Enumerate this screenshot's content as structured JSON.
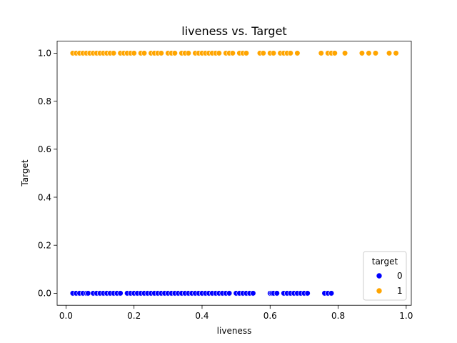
{
  "chart_data": {
    "type": "scatter",
    "title": "liveness vs. Target",
    "xlabel": "liveness",
    "ylabel": "Target",
    "xlim": [
      -0.026,
      1.015
    ],
    "ylim": [
      -0.05,
      1.05
    ],
    "xticks": [
      0.0,
      0.2,
      0.4,
      0.6,
      0.8,
      1.0
    ],
    "xtick_labels": [
      "0.0",
      "0.2",
      "0.4",
      "0.6",
      "0.8",
      "1.0"
    ],
    "yticks": [
      0.0,
      0.2,
      0.4,
      0.6,
      0.8,
      1.0
    ],
    "ytick_labels": [
      "0.0",
      "0.2",
      "0.4",
      "0.6",
      "0.8",
      "1.0"
    ],
    "grid": false,
    "legend": {
      "title": "target",
      "placement": "lower-right",
      "entries": [
        {
          "label": "0",
          "color": "#0000ff"
        },
        {
          "label": "1",
          "color": "#ffa500"
        }
      ]
    },
    "series": [
      {
        "name": "0",
        "color": "#0000ff",
        "y": 0,
        "x": [
          0.02,
          0.03,
          0.04,
          0.05,
          0.06,
          0.065,
          0.08,
          0.09,
          0.1,
          0.11,
          0.12,
          0.13,
          0.14,
          0.15,
          0.16,
          0.18,
          0.19,
          0.2,
          0.21,
          0.22,
          0.23,
          0.24,
          0.25,
          0.26,
          0.27,
          0.28,
          0.29,
          0.3,
          0.31,
          0.32,
          0.33,
          0.34,
          0.35,
          0.36,
          0.37,
          0.38,
          0.39,
          0.4,
          0.41,
          0.42,
          0.43,
          0.44,
          0.45,
          0.46,
          0.47,
          0.48,
          0.5,
          0.51,
          0.52,
          0.53,
          0.54,
          0.55,
          0.6,
          0.605,
          0.61,
          0.62,
          0.64,
          0.65,
          0.66,
          0.67,
          0.68,
          0.69,
          0.7,
          0.71,
          0.76,
          0.77,
          0.78
        ]
      },
      {
        "name": "1",
        "color": "#ffa500",
        "y": 1,
        "x": [
          0.02,
          0.03,
          0.04,
          0.05,
          0.06,
          0.07,
          0.08,
          0.09,
          0.1,
          0.11,
          0.12,
          0.13,
          0.14,
          0.16,
          0.17,
          0.18,
          0.19,
          0.2,
          0.22,
          0.23,
          0.25,
          0.26,
          0.27,
          0.28,
          0.3,
          0.31,
          0.32,
          0.34,
          0.35,
          0.36,
          0.38,
          0.39,
          0.4,
          0.41,
          0.42,
          0.43,
          0.44,
          0.45,
          0.47,
          0.48,
          0.49,
          0.51,
          0.52,
          0.53,
          0.57,
          0.58,
          0.6,
          0.61,
          0.63,
          0.64,
          0.65,
          0.66,
          0.68,
          0.75,
          0.77,
          0.78,
          0.79,
          0.82,
          0.87,
          0.89,
          0.91,
          0.95,
          0.97
        ]
      }
    ]
  }
}
